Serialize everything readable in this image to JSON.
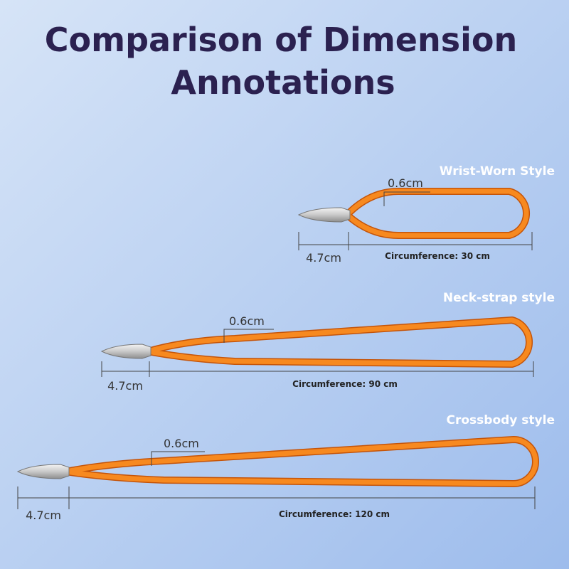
{
  "header": {
    "title_lines": [
      "Comparison of Dimension",
      "Annotations"
    ]
  },
  "items": [
    {
      "style": "Wrist-Worn Style",
      "thickness": "0.6cm",
      "tip_length": "4.7cm",
      "circumference": "Circumference: 30 cm"
    },
    {
      "style": "Neck-strap style",
      "thickness": "0.6cm",
      "tip_length": "4.7cm",
      "circumference": "Circumference: 90 cm"
    },
    {
      "style": "Crossbody style",
      "thickness": "0.6cm",
      "tip_length": "4.7cm",
      "circumference": "Circumference: 120 cm"
    }
  ]
}
